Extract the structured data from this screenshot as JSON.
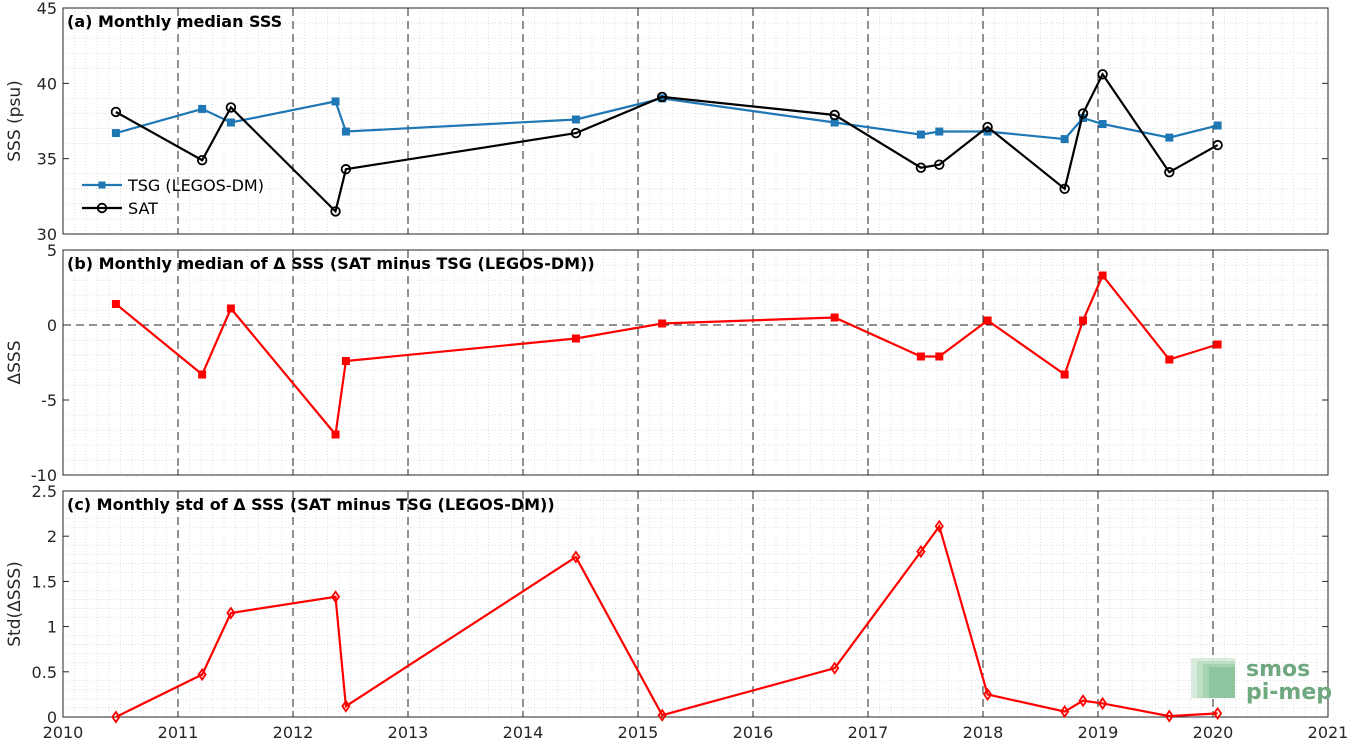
{
  "chart_data": [
    {
      "type": "line",
      "title": "(a) Monthly median SSS",
      "ylabel": "SSS (psu)",
      "xlim": [
        2010,
        2021
      ],
      "ylim": [
        30,
        45
      ],
      "xticks": [
        "2010",
        "2011",
        "2012",
        "2013",
        "2014",
        "2015",
        "2016",
        "2017",
        "2018",
        "2019",
        "2020",
        "2021"
      ],
      "yticks": [
        "30",
        "35",
        "40",
        "45"
      ],
      "grid": "minor dotted, major dashed verticals at years",
      "legend": "left",
      "series": [
        {
          "name": "TSG (LEGOS-DM)",
          "color": "#1f77b4",
          "marker": "square",
          "x": [
            2010.46,
            2011.21,
            2011.46,
            2012.37,
            2012.46,
            2014.46,
            2015.21,
            2016.71,
            2017.46,
            2017.62,
            2018.04,
            2018.71,
            2018.87,
            2019.04,
            2019.62,
            2020.04
          ],
          "y": [
            36.7,
            38.3,
            37.4,
            38.8,
            36.8,
            37.6,
            39.0,
            37.4,
            36.6,
            36.8,
            36.8,
            36.3,
            37.7,
            37.3,
            36.4,
            37.2
          ]
        },
        {
          "name": "SAT",
          "color": "#000000",
          "marker": "circle",
          "x": [
            2010.46,
            2011.21,
            2011.46,
            2012.37,
            2012.46,
            2014.46,
            2015.21,
            2016.71,
            2017.46,
            2017.62,
            2018.04,
            2018.71,
            2018.87,
            2019.04,
            2019.62,
            2020.04
          ],
          "y": [
            38.1,
            34.9,
            38.4,
            31.5,
            34.3,
            36.7,
            39.1,
            37.9,
            34.4,
            34.6,
            37.1,
            33.0,
            38.0,
            40.6,
            34.1,
            35.9
          ]
        }
      ]
    },
    {
      "type": "line",
      "title": "(b) Monthly median of Δ SSS (SAT minus TSG (LEGOS-DM))",
      "ylabel": "ΔSSS",
      "xlim": [
        2010,
        2021
      ],
      "ylim": [
        -10,
        5
      ],
      "xticks": [
        "2010",
        "2011",
        "2012",
        "2013",
        "2014",
        "2015",
        "2016",
        "2017",
        "2018",
        "2019",
        "2020",
        "2021"
      ],
      "yticks": [
        "-10",
        "-5",
        "0",
        "5"
      ],
      "reference_line": 0,
      "series": [
        {
          "name": "",
          "color": "#ff0000",
          "marker": "square",
          "x": [
            2010.46,
            2011.21,
            2011.46,
            2012.37,
            2012.46,
            2014.46,
            2015.21,
            2016.71,
            2017.46,
            2017.62,
            2018.04,
            2018.71,
            2018.87,
            2019.04,
            2019.62,
            2020.04
          ],
          "y": [
            1.4,
            -3.3,
            1.1,
            -7.3,
            -2.4,
            -0.9,
            0.1,
            0.5,
            -2.1,
            -2.1,
            0.3,
            -3.3,
            0.3,
            3.3,
            -2.3,
            -1.3
          ]
        }
      ]
    },
    {
      "type": "line",
      "title": "(c) Monthly std of Δ SSS (SAT minus TSG (LEGOS-DM))",
      "ylabel": "Std(ΔSSS)",
      "xlim": [
        2010,
        2021
      ],
      "ylim": [
        0,
        2.5
      ],
      "xticks": [
        "2010",
        "2011",
        "2012",
        "2013",
        "2014",
        "2015",
        "2016",
        "2017",
        "2018",
        "2019",
        "2020",
        "2021"
      ],
      "yticks": [
        "0",
        "0.5",
        "1",
        "1.5",
        "2",
        "2.5"
      ],
      "series": [
        {
          "name": "",
          "color": "#ff0000",
          "marker": "diamond",
          "x": [
            2010.46,
            2011.21,
            2011.46,
            2012.37,
            2012.46,
            2014.46,
            2015.21,
            2016.71,
            2017.46,
            2017.62,
            2018.04,
            2018.71,
            2018.87,
            2019.04,
            2019.62,
            2020.04
          ],
          "y": [
            0.0,
            0.47,
            1.15,
            1.33,
            0.12,
            1.77,
            0.02,
            0.54,
            1.83,
            2.11,
            0.25,
            0.06,
            0.18,
            0.15,
            0.01,
            0.04
          ]
        }
      ]
    }
  ],
  "logo": {
    "line1": "smos",
    "line2": "pi-mep"
  }
}
